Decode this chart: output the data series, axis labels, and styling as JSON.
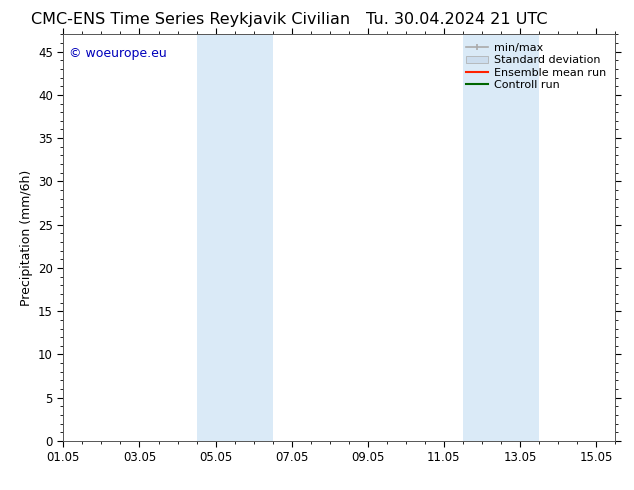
{
  "title_left": "CMC-ENS Time Series Reykjavik Civilian",
  "title_right": "Tu. 30.04.2024 21 UTC",
  "ylabel": "Precipitation (mm/6h)",
  "ylim": [
    0,
    47
  ],
  "yticks": [
    0,
    5,
    10,
    15,
    20,
    25,
    30,
    35,
    40,
    45
  ],
  "xtick_labels": [
    "01.05",
    "03.05",
    "05.05",
    "07.05",
    "09.05",
    "11.05",
    "13.05",
    "15.05"
  ],
  "xtick_positions": [
    0,
    2,
    4,
    6,
    8,
    10,
    12,
    14
  ],
  "xlim": [
    0,
    14
  ],
  "background_color": "#ffffff",
  "plot_bg_color": "#ffffff",
  "shaded_regions": [
    {
      "xmin": 3.5,
      "xmax": 5.5,
      "color": "#daeaf7"
    },
    {
      "xmin": 10.5,
      "xmax": 12.5,
      "color": "#daeaf7"
    }
  ],
  "watermark_text": "© woeurope.eu",
  "watermark_color": "#0000bb",
  "title_fontsize": 11.5,
  "ylabel_fontsize": 9,
  "tick_fontsize": 8.5,
  "watermark_fontsize": 9,
  "legend_fontsize": 8
}
